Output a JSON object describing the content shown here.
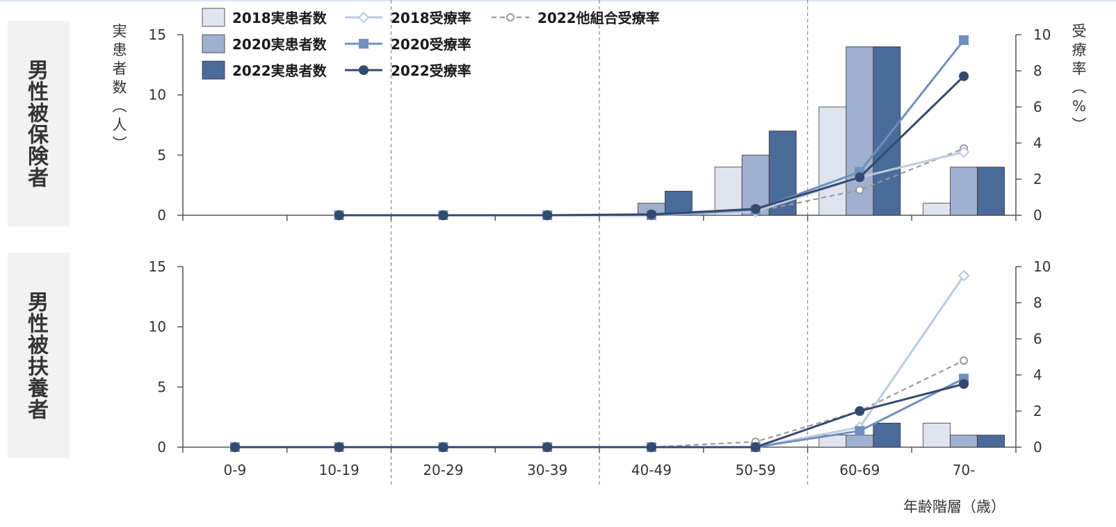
{
  "chart_data": {
    "type": "bar",
    "categories": [
      "0-9",
      "10-19",
      "20-29",
      "30-39",
      "40-49",
      "50-59",
      "60-69",
      "70-"
    ],
    "xlabel": "年齢階層（歳）",
    "ylabel": "実患者数（人）",
    "y2label": "受療率（%）",
    "ylim": [
      0,
      15
    ],
    "yticks": [
      0,
      5,
      10,
      15
    ],
    "y2lim": [
      0,
      10
    ],
    "y2ticks": [
      0,
      2,
      4,
      6,
      8,
      10
    ],
    "legend_position": "top-left",
    "panels": [
      {
        "label": "男性被保険者",
        "bar_series": [
          {
            "name": "2018実患者数",
            "color": "#dfe4ee",
            "values": [
              0,
              0,
              0,
              0,
              0,
              4,
              9,
              1
            ]
          },
          {
            "name": "2020実患者数",
            "color": "#9fb1cf",
            "values": [
              0,
              0,
              0,
              0,
              1,
              5,
              14,
              4
            ]
          },
          {
            "name": "2022実患者数",
            "color": "#4a6b9a",
            "values": [
              0,
              0,
              0,
              0,
              2,
              7,
              14,
              4
            ]
          }
        ],
        "line_series": [
          {
            "name": "2018受療率",
            "color": "#bccbe0",
            "marker": "diamond",
            "dash": false,
            "values": [
              null,
              0,
              0,
              0,
              0,
              0.2,
              2.1,
              3.5
            ]
          },
          {
            "name": "2020受療率",
            "color": "#6f8fbf",
            "marker": "square",
            "dash": false,
            "values": [
              null,
              0,
              0,
              0,
              0,
              0.3,
              2.4,
              9.7
            ]
          },
          {
            "name": "2022受療率",
            "color": "#34496e",
            "marker": "circle",
            "dash": false,
            "values": [
              null,
              0,
              0,
              0,
              0.05,
              0.35,
              2.1,
              7.7
            ]
          },
          {
            "name": "2022他組合受療率",
            "color": "#999999",
            "marker": "open-circle",
            "dash": true,
            "values": [
              null,
              0,
              0,
              0,
              0,
              0.2,
              1.4,
              3.7
            ]
          }
        ]
      },
      {
        "label": "男性被扶養者",
        "bar_series": [
          {
            "name": "2018実患者数",
            "color": "#dfe4ee",
            "values": [
              0,
              0,
              0,
              0,
              0,
              0,
              1,
              2
            ]
          },
          {
            "name": "2020実患者数",
            "color": "#9fb1cf",
            "values": [
              0,
              0,
              0,
              0,
              0,
              0,
              1,
              1
            ]
          },
          {
            "name": "2022実患者数",
            "color": "#4a6b9a",
            "values": [
              0,
              0,
              0,
              0,
              0,
              0,
              2,
              1
            ]
          }
        ],
        "line_series": [
          {
            "name": "2018受療率",
            "color": "#bccbe0",
            "marker": "diamond",
            "dash": false,
            "values": [
              0,
              0,
              0,
              0,
              0,
              0,
              1.1,
              9.5
            ]
          },
          {
            "name": "2020受療率",
            "color": "#6f8fbf",
            "marker": "square",
            "dash": false,
            "values": [
              0,
              0,
              0,
              0,
              0,
              0,
              0.9,
              3.8
            ]
          },
          {
            "name": "2022受療率",
            "color": "#34496e",
            "marker": "circle",
            "dash": false,
            "values": [
              0,
              0,
              0,
              0,
              0,
              0,
              2.0,
              3.5
            ]
          },
          {
            "name": "2022他組合受療率",
            "color": "#999999",
            "marker": "open-circle",
            "dash": true,
            "values": [
              0,
              0,
              0,
              0,
              0,
              0.3,
              2.0,
              4.8
            ]
          }
        ]
      }
    ],
    "legend": [
      {
        "name": "2018実患者数",
        "kind": "bar",
        "color": "#dfe4ee"
      },
      {
        "name": "2020実患者数",
        "kind": "bar",
        "color": "#9fb1cf"
      },
      {
        "name": "2022実患者数",
        "kind": "bar",
        "color": "#4a6b9a"
      },
      {
        "name": "2018受療率",
        "kind": "line",
        "color": "#bccbe0",
        "marker": "diamond",
        "dash": false
      },
      {
        "name": "2020受療率",
        "kind": "line",
        "color": "#6f8fbf",
        "marker": "square",
        "dash": false
      },
      {
        "name": "2022受療率",
        "kind": "line",
        "color": "#34496e",
        "marker": "circle",
        "dash": false
      },
      {
        "name": "2022他組合受療率",
        "kind": "line",
        "color": "#999999",
        "marker": "open-circle",
        "dash": true
      }
    ]
  }
}
